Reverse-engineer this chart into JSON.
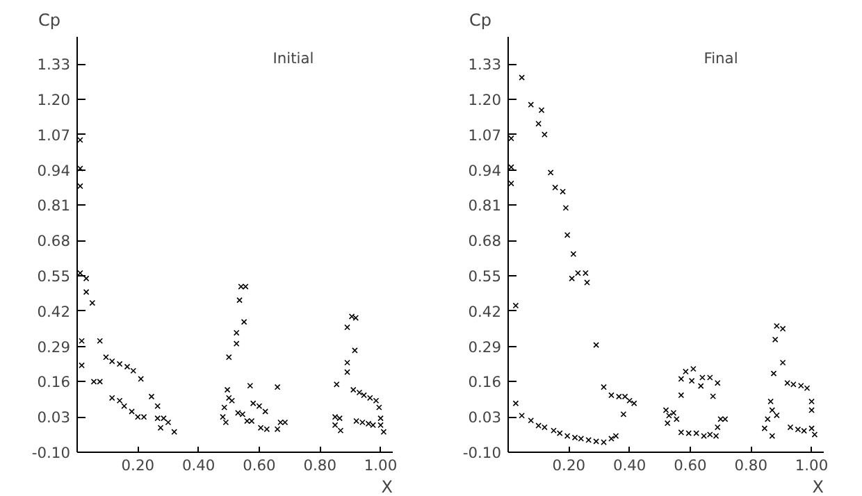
{
  "chart_data": [
    {
      "type": "scatter",
      "title": "Initial",
      "xlabel": "X",
      "ylabel": "Cp",
      "marker": "cross",
      "grid": false,
      "xlim": [
        0,
        1.04
      ],
      "ylim": [
        -0.1,
        1.43
      ],
      "xticks": [
        {
          "value": 0.2,
          "label": "0.20"
        },
        {
          "value": 0.4,
          "label": "0.40"
        },
        {
          "value": 0.6,
          "label": "0.60"
        },
        {
          "value": 0.8,
          "label": "0.80"
        },
        {
          "value": 1.0,
          "label": "1.00"
        }
      ],
      "yticks": [
        {
          "value": -0.1,
          "label": "-0.10"
        },
        {
          "value": 0.03,
          "label": "0.03"
        },
        {
          "value": 0.16,
          "label": "0.16"
        },
        {
          "value": 0.29,
          "label": "0.29"
        },
        {
          "value": 0.42,
          "label": "0.42"
        },
        {
          "value": 0.55,
          "label": "0.55"
        },
        {
          "value": 0.68,
          "label": "0.68"
        },
        {
          "value": 0.81,
          "label": "0.81"
        },
        {
          "value": 0.94,
          "label": "0.94"
        },
        {
          "value": 1.07,
          "label": "1.07"
        },
        {
          "value": 1.2,
          "label": "1.20"
        },
        {
          "value": 1.33,
          "label": "1.33"
        }
      ],
      "series": [
        {
          "color": "#000000",
          "x": [
            0.01,
            0.01,
            0.01,
            0.01,
            0.03,
            0.03,
            0.05,
            0.015,
            0.075,
            0.015,
            0.055,
            0.075,
            0.095,
            0.115,
            0.14,
            0.165,
            0.185,
            0.21,
            0.115,
            0.14,
            0.155,
            0.18,
            0.2,
            0.22,
            0.245,
            0.265,
            0.265,
            0.285,
            0.275,
            0.3,
            0.32,
            0.495,
            0.5,
            0.525,
            0.525,
            0.535,
            0.54,
            0.555,
            0.55,
            0.57,
            0.48,
            0.485,
            0.49,
            0.5,
            0.51,
            0.53,
            0.545,
            0.56,
            0.575,
            0.58,
            0.6,
            0.62,
            0.605,
            0.625,
            0.66,
            0.66,
            0.67,
            0.685,
            0.855,
            0.85,
            0.85,
            0.865,
            0.868,
            0.89,
            0.89,
            0.89,
            0.905,
            0.918,
            0.915,
            0.91,
            0.93,
            0.945,
            0.965,
            0.985,
            0.995,
            0.92,
            0.94,
            0.96,
            0.975,
            1.0,
            1.0,
            1.01
          ],
          "values": [
            1.05,
            0.945,
            0.88,
            0.56,
            0.54,
            0.49,
            0.45,
            0.31,
            0.31,
            0.22,
            0.16,
            0.16,
            0.25,
            0.235,
            0.225,
            0.215,
            0.2,
            0.17,
            0.1,
            0.09,
            0.07,
            0.05,
            0.03,
            0.03,
            0.105,
            0.07,
            0.025,
            0.025,
            -0.01,
            0.01,
            -0.025,
            0.13,
            0.25,
            0.3,
            0.34,
            0.46,
            0.51,
            0.51,
            0.38,
            0.145,
            0.03,
            0.065,
            0.01,
            0.1,
            0.09,
            0.045,
            0.04,
            0.015,
            0.015,
            0.08,
            0.07,
            0.05,
            -0.01,
            -0.015,
            0.14,
            -0.015,
            0.01,
            0.01,
            0.15,
            0.03,
            0.0,
            0.025,
            -0.02,
            0.36,
            0.23,
            0.195,
            0.4,
            0.395,
            0.275,
            0.13,
            0.12,
            0.11,
            0.1,
            0.09,
            0.065,
            0.015,
            0.01,
            0.005,
            0.0,
            0.025,
            0.0,
            -0.025
          ]
        }
      ]
    },
    {
      "type": "scatter",
      "title": "Final",
      "xlabel": "X",
      "ylabel": "Cp",
      "marker": "cross",
      "grid": false,
      "xlim": [
        0,
        1.04
      ],
      "ylim": [
        -0.1,
        1.43
      ],
      "xticks": [
        {
          "value": 0.2,
          "label": "0.20"
        },
        {
          "value": 0.4,
          "label": "0.40"
        },
        {
          "value": 0.6,
          "label": "0.60"
        },
        {
          "value": 0.8,
          "label": "0.80"
        },
        {
          "value": 1.0,
          "label": "1.00"
        }
      ],
      "yticks": [
        {
          "value": -0.1,
          "label": "-0.10"
        },
        {
          "value": 0.03,
          "label": "0.03"
        },
        {
          "value": 0.16,
          "label": "0.16"
        },
        {
          "value": 0.29,
          "label": "0.29"
        },
        {
          "value": 0.42,
          "label": "0.42"
        },
        {
          "value": 0.55,
          "label": "0.55"
        },
        {
          "value": 0.68,
          "label": "0.68"
        },
        {
          "value": 0.81,
          "label": "0.81"
        },
        {
          "value": 0.94,
          "label": "0.94"
        },
        {
          "value": 1.07,
          "label": "1.07"
        },
        {
          "value": 1.2,
          "label": "1.20"
        },
        {
          "value": 1.33,
          "label": "1.33"
        }
      ],
      "series": [
        {
          "color": "#000000",
          "x": [
            0.01,
            0.01,
            0.01,
            0.025,
            0.025,
            0.045,
            0.075,
            0.11,
            0.1,
            0.12,
            0.14,
            0.155,
            0.18,
            0.19,
            0.195,
            0.215,
            0.21,
            0.23,
            0.255,
            0.26,
            0.29,
            0.315,
            0.34,
            0.365,
            0.385,
            0.4,
            0.415,
            0.38,
            0.045,
            0.075,
            0.1,
            0.12,
            0.15,
            0.17,
            0.195,
            0.22,
            0.24,
            0.265,
            0.29,
            0.315,
            0.34,
            0.355,
            0.52,
            0.525,
            0.53,
            0.545,
            0.555,
            0.57,
            0.57,
            0.585,
            0.605,
            0.61,
            0.635,
            0.64,
            0.665,
            0.675,
            0.69,
            0.57,
            0.595,
            0.62,
            0.645,
            0.665,
            0.685,
            0.69,
            0.7,
            0.715,
            0.845,
            0.855,
            0.87,
            0.865,
            0.87,
            0.885,
            0.875,
            0.88,
            0.885,
            0.905,
            0.905,
            0.92,
            0.94,
            0.965,
            0.985,
            1.0,
            1.0,
            0.93,
            0.955,
            0.975,
            1.0,
            1.01
          ],
          "values": [
            1.056,
            0.95,
            0.89,
            0.44,
            0.08,
            1.28,
            1.18,
            1.16,
            1.11,
            1.07,
            0.93,
            0.875,
            0.86,
            0.8,
            0.7,
            0.63,
            0.54,
            0.56,
            0.56,
            0.525,
            0.295,
            0.14,
            0.11,
            0.105,
            0.105,
            0.09,
            0.08,
            0.04,
            0.035,
            0.017,
            -0.002,
            -0.008,
            -0.02,
            -0.03,
            -0.04,
            -0.046,
            -0.05,
            -0.055,
            -0.06,
            -0.063,
            -0.05,
            -0.04,
            0.055,
            0.007,
            0.035,
            0.045,
            0.022,
            0.11,
            0.17,
            0.197,
            0.163,
            0.207,
            0.144,
            0.175,
            0.175,
            0.106,
            0.155,
            -0.027,
            -0.03,
            -0.03,
            -0.04,
            -0.035,
            -0.04,
            -0.008,
            0.022,
            0.022,
            -0.012,
            0.022,
            -0.04,
            0.087,
            0.055,
            0.036,
            0.19,
            0.315,
            0.365,
            0.355,
            0.23,
            0.155,
            0.15,
            0.145,
            0.136,
            0.087,
            0.055,
            -0.008,
            -0.016,
            -0.021,
            -0.012,
            -0.035
          ]
        }
      ]
    }
  ]
}
